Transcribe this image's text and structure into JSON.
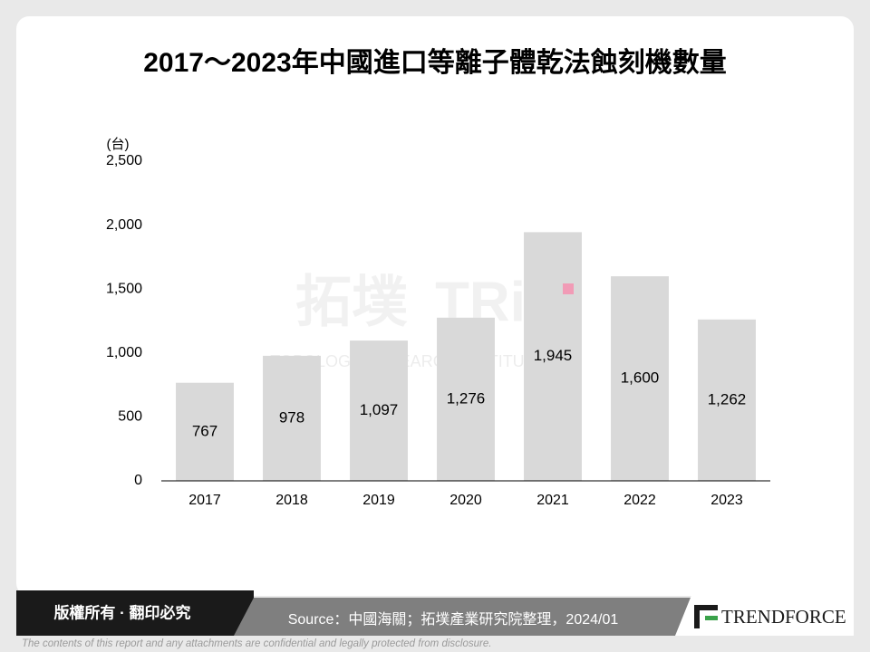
{
  "chart_data": {
    "type": "bar",
    "title": "2017～2023年中國進口等離子體乾法蝕刻機數量",
    "y_label": "(台)",
    "categories": [
      "2017",
      "2018",
      "2019",
      "2020",
      "2021",
      "2022",
      "2023"
    ],
    "values": [
      767,
      978,
      1097,
      1276,
      1945,
      1600,
      1262
    ],
    "value_labels": [
      "767",
      "978",
      "1,097",
      "1,276",
      "1,945",
      "1,600",
      "1,262"
    ],
    "color": "#d9d9d9",
    "ylim": [
      0,
      2500
    ],
    "yticks": [
      0,
      500,
      {
        "value": 1000,
        "label": "1,000"
      },
      {
        "value": 1500,
        "label": "1,500"
      },
      {
        "value": 2000,
        "label": "2,000"
      },
      {
        "value": 2500,
        "label": "2,500"
      }
    ],
    "grid": false
  },
  "watermark": {
    "logo": "拓墣",
    "mark": "TRi",
    "name": "TOPOLOGY RESEARCH INSTITUTE"
  },
  "footer": {
    "rights": "版權所有 · 翻印必究",
    "source": "Source：中國海關；拓墣產業研究院整理，2024/01",
    "brand": "TRENDFORCE",
    "disclaimer": "The contents of this report and any attachments are confidential and legally protected from disclosure."
  }
}
